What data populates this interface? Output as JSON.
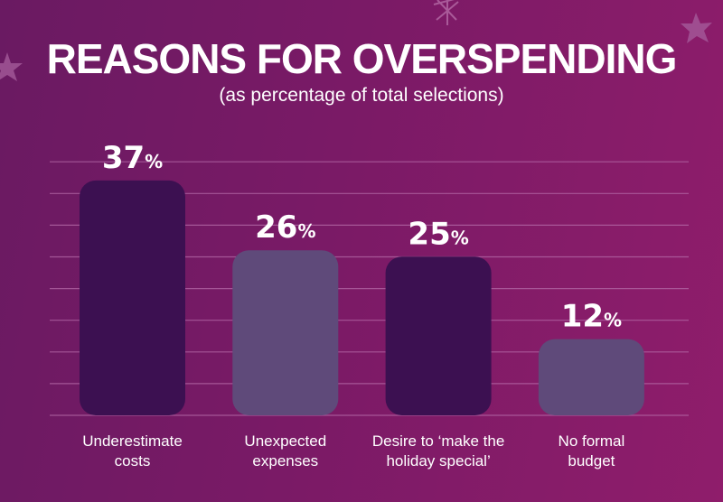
{
  "chart_data": {
    "type": "bar",
    "title": "REASONS FOR OVERSPENDING",
    "subtitle": "(as percentage of total selections)",
    "categories": [
      "Underestimate costs",
      "Unexpected expenses",
      "Desire to ‘make the holiday special’",
      "No formal budget"
    ],
    "category_lines": [
      [
        "Underestimate",
        "costs"
      ],
      [
        "Unexpected",
        "expenses"
      ],
      [
        "Desire to ‘make the",
        "holiday special’"
      ],
      [
        "No formal",
        "budget"
      ]
    ],
    "values": [
      37,
      26,
      25,
      12
    ],
    "data_labels": [
      "37%",
      "26%",
      "25%",
      "12%"
    ],
    "unit": "%",
    "grid": true,
    "colors": [
      "#3c1051",
      "#5f4a7a",
      "#3c1051",
      "#5f4a7a"
    ],
    "background": "#7a1a66"
  }
}
